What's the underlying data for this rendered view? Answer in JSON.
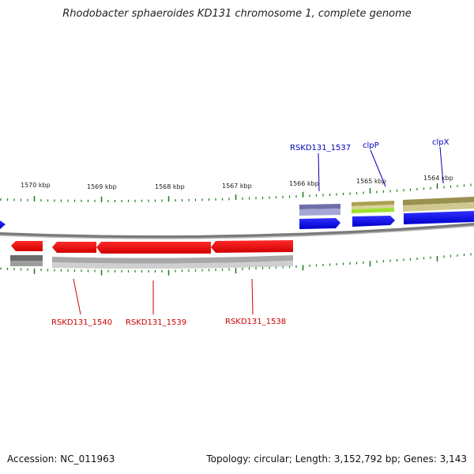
{
  "title": "Rhodobacter sphaeroides KD131 chromosome 1, complete genome",
  "footer": {
    "accession": "Accession: NC_011963",
    "summary": "Topology: circular; Length: 3,152,792 bp; Genes: 3,143"
  },
  "colors": {
    "backbone": "#888888",
    "tick": "#1a7a1a",
    "forward_cds": "#0000ee",
    "reverse_cds": "#ee0000",
    "forward_label": "#0000bb",
    "reverse_label": "#cc0000"
  },
  "kbp_ticks": [
    "1570 kbp",
    "1569 kbp",
    "1568 kbp",
    "1567 kbp",
    "1566 kbp",
    "1565 kbp",
    "1564 kbp"
  ],
  "genes_top": [
    {
      "name": "RSKD131_1537"
    },
    {
      "name": "clpP"
    },
    {
      "name": "clpX"
    }
  ],
  "genes_bottom": [
    {
      "name": "RSKD131_1540"
    },
    {
      "name": "RSKD131_1539"
    },
    {
      "name": "RSKD131_1538"
    }
  ]
}
